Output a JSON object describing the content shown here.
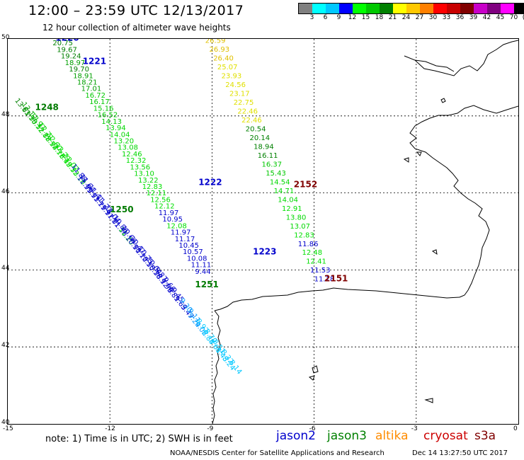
{
  "title": "12:00 – 23:59 UTC 12/13/2017",
  "subtitle": "12 hour collection of altimeter wave heights",
  "legend": {
    "colors": [
      "#808080",
      "#00ffff",
      "#00c8ff",
      "#0000ff",
      "#00ff00",
      "#00c800",
      "#008000",
      "#ffff00",
      "#ffc800",
      "#ff8000",
      "#ff0000",
      "#c80000",
      "#800000",
      "#c800c8",
      "#800080",
      "#ff00ff",
      "#000000"
    ],
    "labels": [
      "3",
      "6",
      "9",
      "12",
      "15",
      "18",
      "21",
      "24",
      "27",
      "30",
      "33",
      "36",
      "39",
      "42",
      "45",
      "70",
      "(ft)"
    ]
  },
  "axes": {
    "x_ticks": [
      "-15",
      "-12",
      "-9",
      "-6",
      "-3",
      "0"
    ],
    "y_ticks": [
      "50",
      "48",
      "46",
      "44",
      "42",
      "40"
    ]
  },
  "map": {
    "lon_range": [
      -15,
      0
    ],
    "lat_range": [
      40,
      50
    ],
    "grid": true,
    "coastline_color": "#000000"
  },
  "passes": [
    {
      "id": "1220",
      "color": "#0000cc",
      "lon": -13.6,
      "lat": 49.95
    },
    {
      "id": "1221",
      "color": "#0000cc",
      "lon": -12.8,
      "lat": 49.35
    },
    {
      "id": "1222",
      "color": "#0000cc",
      "lon": -9.4,
      "lat": 46.2
    },
    {
      "id": "1223",
      "color": "#0000cc",
      "lon": -7.8,
      "lat": 44.4
    },
    {
      "id": "2152",
      "color": "#800000",
      "lon": -6.6,
      "lat": 46.15
    },
    {
      "id": "2151",
      "color": "#800000",
      "lon": -5.7,
      "lat": 43.7
    },
    {
      "id": "1248",
      "color": "#007a00",
      "lon": -14.2,
      "lat": 48.15
    },
    {
      "id": "1250",
      "color": "#007a00",
      "lon": -12.0,
      "lat": 45.5
    },
    {
      "id": "1251",
      "color": "#007a00",
      "lon": -9.5,
      "lat": 43.55
    }
  ],
  "tracks": [
    {
      "name": "track-1220",
      "start": [
        -13.8,
        50.0
      ],
      "end": [
        -9.5,
        43.9
      ],
      "points": [
        {
          "v": "21.16",
          "c": "#e0e000"
        },
        {
          "v": "20.75",
          "c": "#008000"
        },
        {
          "v": "19.67",
          "c": "#008000"
        },
        {
          "v": "19.24",
          "c": "#008000"
        },
        {
          "v": "18.97",
          "c": "#00a000"
        },
        {
          "v": "19.70",
          "c": "#008000"
        },
        {
          "v": "18.91",
          "c": "#00a000"
        },
        {
          "v": "18.21",
          "c": "#00a000"
        },
        {
          "v": "17.01",
          "c": "#00a000"
        },
        {
          "v": "16.72",
          "c": "#00c800"
        },
        {
          "v": "16.17",
          "c": "#00c800"
        },
        {
          "v": "15.16",
          "c": "#00c800"
        },
        {
          "v": "16.52",
          "c": "#00c800"
        },
        {
          "v": "14.13",
          "c": "#00c800"
        },
        {
          "v": "13.94",
          "c": "#00d800"
        },
        {
          "v": "14.04",
          "c": "#00d800"
        },
        {
          "v": "13.20",
          "c": "#00d800"
        },
        {
          "v": "13.08",
          "c": "#00d800"
        },
        {
          "v": "12.46",
          "c": "#00d800"
        },
        {
          "v": "12.32",
          "c": "#00e000"
        },
        {
          "v": "13.56",
          "c": "#00d800"
        },
        {
          "v": "13.10",
          "c": "#00d800"
        },
        {
          "v": "13.22",
          "c": "#00d800"
        },
        {
          "v": "12.83",
          "c": "#00e000"
        },
        {
          "v": "12.11",
          "c": "#00e000"
        },
        {
          "v": "12.56",
          "c": "#00e000"
        },
        {
          "v": "12.12",
          "c": "#00e000"
        },
        {
          "v": "11.97",
          "c": "#0000cc"
        },
        {
          "v": "10.95",
          "c": "#0000cc"
        },
        {
          "v": "12.08",
          "c": "#00e000"
        },
        {
          "v": "11.97",
          "c": "#0000cc"
        },
        {
          "v": "11.17",
          "c": "#0000cc"
        },
        {
          "v": "10.45",
          "c": "#0000cc"
        },
        {
          "v": "10.57",
          "c": "#0000cc"
        },
        {
          "v": "10.08",
          "c": "#0000cc"
        },
        {
          "v": "11.11",
          "c": "#0000cc"
        },
        {
          "v": "9.44",
          "c": "#0000cc"
        }
      ]
    },
    {
      "name": "track-2152",
      "start": [
        -9.2,
        49.9
      ],
      "end": [
        -6.0,
        43.7
      ],
      "points": [
        {
          "v": "26.59",
          "c": "#e0c000"
        },
        {
          "v": "26.93",
          "c": "#e0c000"
        },
        {
          "v": "26.40",
          "c": "#e0c000"
        },
        {
          "v": "25.07",
          "c": "#e0e000"
        },
        {
          "v": "23.93",
          "c": "#e0e000"
        },
        {
          "v": "24.56",
          "c": "#e0e000"
        },
        {
          "v": "23.17",
          "c": "#e0e000"
        },
        {
          "v": "22.75",
          "c": "#e0e000"
        },
        {
          "v": "22.46",
          "c": "#e0e000"
        },
        {
          "v": "22.46",
          "c": "#e0e000"
        },
        {
          "v": "20.54",
          "c": "#008000"
        },
        {
          "v": "20.14",
          "c": "#008000"
        },
        {
          "v": "18.94",
          "c": "#008000"
        },
        {
          "v": "16.11",
          "c": "#008000"
        },
        {
          "v": "16.37",
          "c": "#00c800"
        },
        {
          "v": "15.43",
          "c": "#00c800"
        },
        {
          "v": "14.54",
          "c": "#00d800"
        },
        {
          "v": "14.71",
          "c": "#00d800"
        },
        {
          "v": "14.04",
          "c": "#00d800"
        },
        {
          "v": "12.91",
          "c": "#00e000"
        },
        {
          "v": "13.80",
          "c": "#00d800"
        },
        {
          "v": "13.07",
          "c": "#00d800"
        },
        {
          "v": "12.83",
          "c": "#00e000"
        },
        {
          "v": "11.86",
          "c": "#0000cc"
        },
        {
          "v": "12.48",
          "c": "#00e000"
        },
        {
          "v": "12.41",
          "c": "#00e000"
        },
        {
          "v": "11.53",
          "c": "#0000cc"
        },
        {
          "v": "11.18",
          "c": "#0000cc"
        }
      ]
    },
    {
      "name": "track-1248-dense",
      "start": [
        -14.8,
        48.4
      ],
      "end": [
        -8.7,
        41.7
      ],
      "dense": true,
      "points": [
        {
          "v": "13.61",
          "c": "#008000"
        },
        {
          "v": "13.30",
          "c": "#00a000"
        },
        {
          "v": "13.52",
          "c": "#00c800"
        },
        {
          "v": "12.88",
          "c": "#00c800"
        },
        {
          "v": "12.94",
          "c": "#00d800"
        },
        {
          "v": "12.76",
          "c": "#00d800"
        },
        {
          "v": "12.49",
          "c": "#00e000"
        },
        {
          "v": "12.33",
          "c": "#00e000"
        },
        {
          "v": "12.18",
          "c": "#00e000"
        },
        {
          "v": "11.99",
          "c": "#0000cc"
        },
        {
          "v": "11.93",
          "c": "#0000cc"
        },
        {
          "v": "11.79",
          "c": "#0000cc"
        },
        {
          "v": "11.97",
          "c": "#0000cc"
        },
        {
          "v": "11.81",
          "c": "#0000cc"
        },
        {
          "v": "11.56",
          "c": "#0000cc"
        },
        {
          "v": "11.20",
          "c": "#00e000"
        },
        {
          "v": "10.91",
          "c": "#0000cc"
        },
        {
          "v": "10.72",
          "c": "#0000cc"
        },
        {
          "v": "10.55",
          "c": "#0000cc"
        },
        {
          "v": "10.38",
          "c": "#0000cc"
        },
        {
          "v": "10.12",
          "c": "#0000cc"
        },
        {
          "v": "9.96",
          "c": "#0000cc"
        },
        {
          "v": "9.81",
          "c": "#0000cc"
        },
        {
          "v": "9.63",
          "c": "#0000cc"
        },
        {
          "v": "9.47",
          "c": "#0000cc"
        },
        {
          "v": "9.24",
          "c": "#0099ff"
        },
        {
          "v": "9.02",
          "c": "#0099ff"
        },
        {
          "v": "8.84",
          "c": "#00c8ff"
        },
        {
          "v": "8.61",
          "c": "#00c8ff"
        },
        {
          "v": "8.43",
          "c": "#00c8ff"
        },
        {
          "v": "8.24",
          "c": "#00c8ff"
        }
      ]
    },
    {
      "name": "track-1250-dense",
      "start": [
        -14.6,
        48.3
      ],
      "end": [
        -8.5,
        41.6
      ],
      "dense": true,
      "points": [
        {
          "v": "13.12",
          "c": "#00a000"
        },
        {
          "v": "12.97",
          "c": "#00c800"
        },
        {
          "v": "12.71",
          "c": "#00d800"
        },
        {
          "v": "12.60",
          "c": "#00e000"
        },
        {
          "v": "12.29",
          "c": "#00e000"
        },
        {
          "v": "12.02",
          "c": "#00e000"
        },
        {
          "v": "11.88",
          "c": "#0000cc"
        },
        {
          "v": "11.64",
          "c": "#0000cc"
        },
        {
          "v": "11.41",
          "c": "#0000cc"
        },
        {
          "v": "11.22",
          "c": "#0000cc"
        },
        {
          "v": "11.04",
          "c": "#0000cc"
        },
        {
          "v": "10.86",
          "c": "#0000cc"
        },
        {
          "v": "10.66",
          "c": "#0000cc"
        },
        {
          "v": "10.47",
          "c": "#0000cc"
        },
        {
          "v": "10.25",
          "c": "#0000cc"
        },
        {
          "v": "10.04",
          "c": "#0000cc"
        },
        {
          "v": "9.87",
          "c": "#0000cc"
        },
        {
          "v": "9.66",
          "c": "#0000cc"
        },
        {
          "v": "9.45",
          "c": "#0000cc"
        },
        {
          "v": "9.30",
          "c": "#0099ff"
        },
        {
          "v": "9.11",
          "c": "#0099ff"
        },
        {
          "v": "8.92",
          "c": "#00c8ff"
        },
        {
          "v": "8.70",
          "c": "#00c8ff"
        },
        {
          "v": "8.51",
          "c": "#00c8ff"
        },
        {
          "v": "8.32",
          "c": "#00c8ff"
        },
        {
          "v": "8.14",
          "c": "#00c8ff"
        }
      ]
    }
  ],
  "footer": {
    "note": "note: 1) Time is in UTC; 2) SWH is in feet",
    "satellites": [
      {
        "name": "jason2",
        "color": "#0000cc"
      },
      {
        "name": "jason3",
        "color": "#008000"
      },
      {
        "name": "altika",
        "color": "#ff8c00"
      },
      {
        "name": "cryosat",
        "color": "#cc0000"
      },
      {
        "name": "s3a",
        "color": "#800000"
      }
    ],
    "credit": "NOAA/NESDIS Center for Satellite Applications and Research",
    "timestamp": "Dec 14 13:27:50 UTC 2017"
  }
}
